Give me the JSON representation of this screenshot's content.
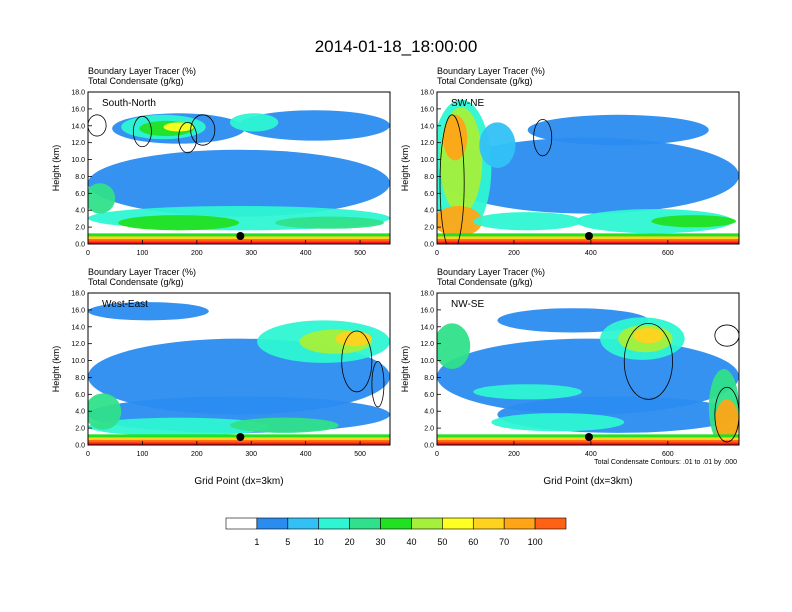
{
  "title": "2014-01-18_18:00:00",
  "colors": {
    "levels": [
      "#ffffff",
      "#2b8cf0",
      "#33c1f5",
      "#2ef5d2",
      "#30e08a",
      "#22e022",
      "#a4f03a",
      "#ffff22",
      "#ffd21e",
      "#ffa516",
      "#ff6214",
      "#ff1616"
    ],
    "contour": "#000000"
  },
  "chart_data": [
    {
      "type": "heatmap",
      "title_lines": [
        "Boundary Layer Tracer    (%)",
        "Total Condensate    (g/kg)"
      ],
      "label": "South-North",
      "ylabel": "Height (km)",
      "xlabel": "",
      "ylim": [
        0,
        18
      ],
      "xlim": [
        0,
        555
      ],
      "xticks": [
        0,
        100,
        200,
        300,
        400,
        500
      ],
      "yticks": [
        "0.0",
        "2.0",
        "4.0",
        "6.0",
        "8.0",
        "10.0",
        "12.0",
        "14.0",
        "16.0",
        "18.0"
      ],
      "marker_x": 280,
      "footnote": ""
    },
    {
      "type": "heatmap",
      "title_lines": [
        "Boundary Layer Tracer    (%)",
        "Total Condensate    (g/kg)"
      ],
      "label": "SW-NE",
      "ylabel": "Height (km)",
      "xlabel": "",
      "ylim": [
        0,
        18
      ],
      "xlim": [
        0,
        785
      ],
      "xticks": [
        0,
        200,
        400,
        600
      ],
      "yticks": [
        "0.0",
        "2.0",
        "4.0",
        "6.0",
        "8.0",
        "10.0",
        "12.0",
        "14.0",
        "16.0",
        "18.0"
      ],
      "marker_x": 395,
      "footnote": ""
    },
    {
      "type": "heatmap",
      "title_lines": [
        "Boundary Layer Tracer    (%)",
        "Total Condensate    (g/kg)"
      ],
      "label": "West-East",
      "ylabel": "Height (km)",
      "xlabel": "Grid Point (dx=3km)",
      "ylim": [
        0,
        18
      ],
      "xlim": [
        0,
        555
      ],
      "xticks": [
        0,
        100,
        200,
        300,
        400,
        500
      ],
      "yticks": [
        "0.0",
        "2.0",
        "4.0",
        "6.0",
        "8.0",
        "10.0",
        "12.0",
        "14.0",
        "16.0",
        "18.0"
      ],
      "marker_x": 280,
      "footnote": ""
    },
    {
      "type": "heatmap",
      "title_lines": [
        "Boundary Layer Tracer    (%)",
        "Total Condensate    (g/kg)"
      ],
      "label": "NW-SE",
      "ylabel": "Height (km)",
      "xlabel": "Grid Point (dx=3km)",
      "ylim": [
        0,
        18
      ],
      "xlim": [
        0,
        785
      ],
      "xticks": [
        0,
        200,
        400,
        600
      ],
      "yticks": [
        "0.0",
        "2.0",
        "4.0",
        "6.0",
        "8.0",
        "10.0",
        "12.0",
        "14.0",
        "16.0",
        "18.0"
      ],
      "marker_x": 395,
      "footnote": "Total Condensate Contours: .01 to .01 by .000"
    }
  ],
  "colorbar": {
    "labels": [
      "1",
      "5",
      "10",
      "20",
      "30",
      "40",
      "50",
      "60",
      "70",
      "100"
    ]
  }
}
